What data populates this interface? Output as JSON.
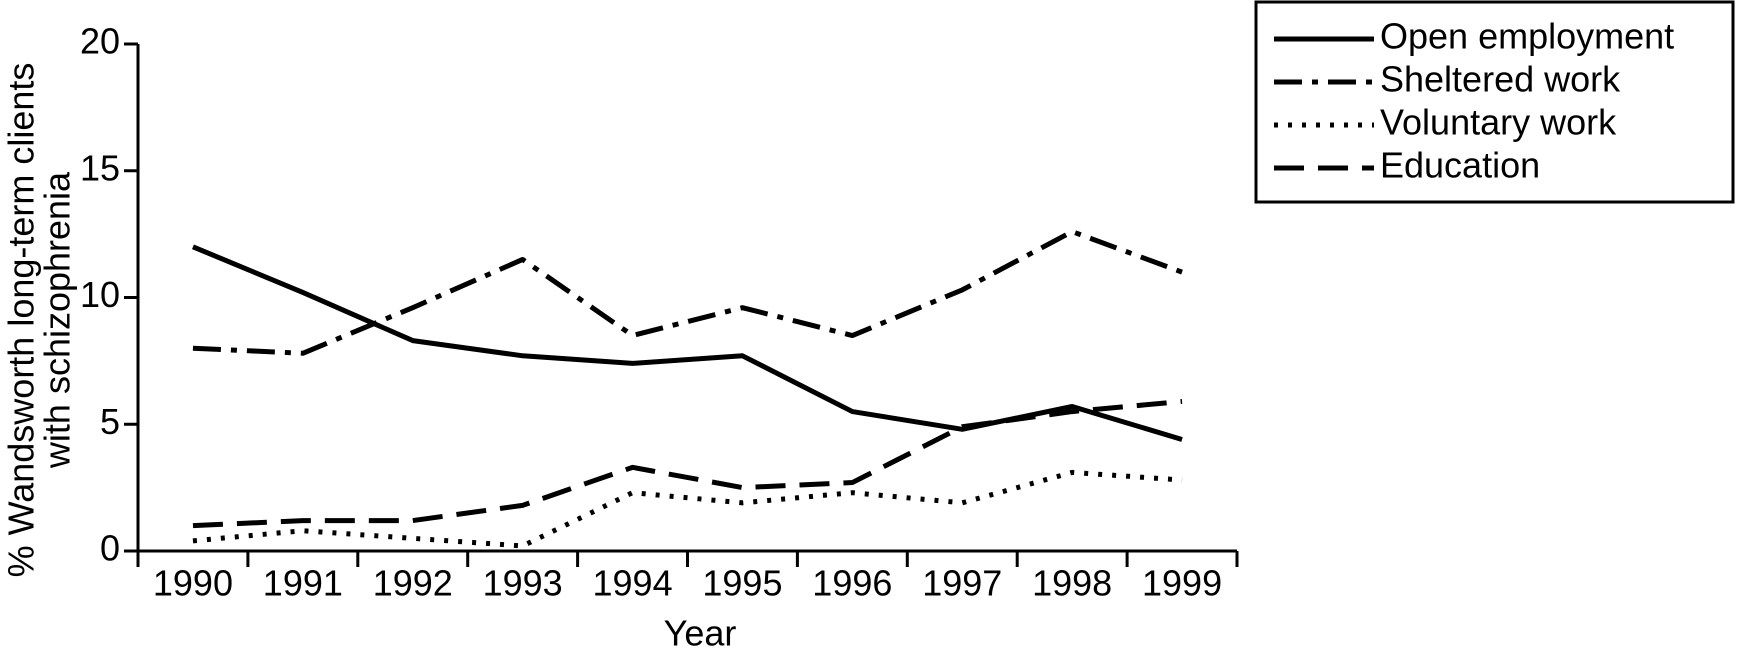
{
  "chart_data": {
    "type": "line",
    "x_label": "Year",
    "y_label": [
      "% Wandsworth long-term clients",
      "with schizophrenia"
    ],
    "categories": [
      "1990",
      "1991",
      "1992",
      "1993",
      "1994",
      "1995",
      "1996",
      "1997",
      "1998",
      "1999"
    ],
    "series": [
      {
        "name": "Open employment",
        "color": "#000000",
        "style": "solid",
        "values": [
          12,
          10.2,
          8.3,
          7.7,
          7.4,
          7.7,
          5.5,
          4.8,
          5.7,
          4.4
        ]
      },
      {
        "name": "Sheltered work",
        "color": "#000000",
        "style": "dashdot",
        "values": [
          8,
          7.8,
          9.6,
          11.5,
          8.5,
          9.6,
          8.5,
          10.3,
          12.6,
          11
        ]
      },
      {
        "name": "Voluntary work",
        "color": "#000000",
        "style": "dotted",
        "values": [
          0.4,
          0.8,
          0.5,
          0.2,
          2.3,
          1.9,
          2.3,
          1.9,
          3.1,
          2.8
        ]
      },
      {
        "name": "Education",
        "color": "#000000",
        "style": "dashed",
        "values": [
          1,
          1.2,
          1.2,
          1.8,
          3.3,
          2.5,
          2.7,
          4.9,
          5.5,
          5.9
        ]
      }
    ],
    "ylim": [
      0,
      20
    ],
    "yticks": [
      0,
      5,
      10,
      15,
      20
    ],
    "grid": false,
    "legend": "top-right"
  }
}
